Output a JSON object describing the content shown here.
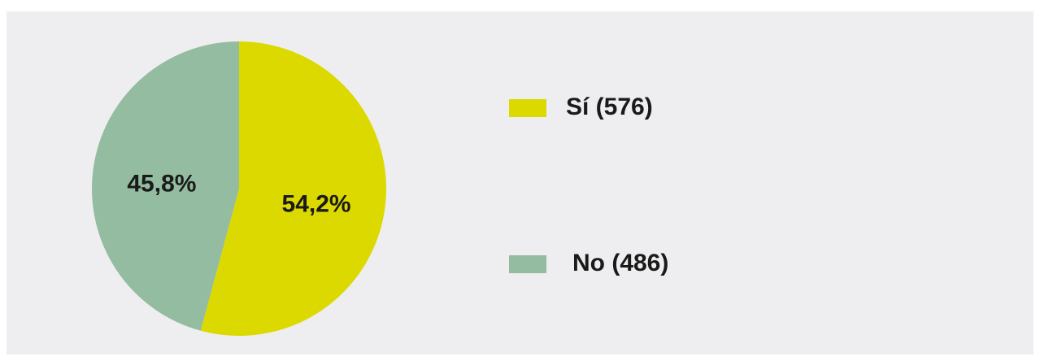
{
  "chart_data": {
    "type": "pie",
    "categories": [
      "Sí (576)",
      "No (486)"
    ],
    "values": [
      54.2,
      45.8
    ],
    "value_labels": [
      "54,2%",
      "45,8%"
    ],
    "colors": [
      "#dcd900",
      "#93bca0"
    ]
  }
}
